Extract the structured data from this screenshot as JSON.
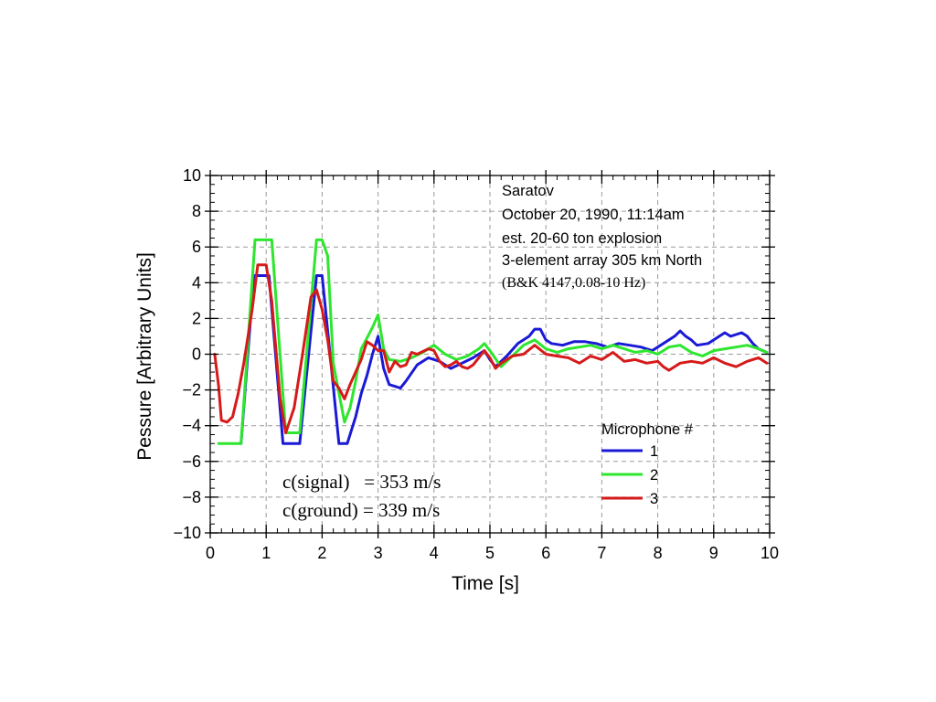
{
  "chart_data": {
    "type": "line",
    "xlabel": "Time [s]",
    "ylabel": "Pessure [Arbitrary Units]",
    "xlim": [
      0,
      10
    ],
    "ylim": [
      -10,
      10
    ],
    "xticks": [
      0,
      1,
      2,
      3,
      4,
      5,
      6,
      7,
      8,
      9,
      10
    ],
    "yticks": [
      -10,
      -8,
      -6,
      -4,
      -2,
      0,
      2,
      4,
      6,
      8,
      10
    ],
    "grid": true,
    "legend_title": "Microphone #",
    "legend_position": "lower-right",
    "annotations": {
      "info_lines": [
        "Saratov",
        "October 20, 1990, 11:14am",
        "est. 20-60 ton explosion",
        "3-element array 305 km North"
      ],
      "sensor_line": "(B&K 4147,0.08-10 Hz)",
      "speed_lines": [
        "c(signal)   = 353 m/s",
        "c(ground) = 339 m/s"
      ]
    },
    "series": [
      {
        "name": "1",
        "color": "#1a1ad6",
        "points": [
          [
            0.55,
            -5.0
          ],
          [
            0.78,
            4.4
          ],
          [
            1.05,
            4.4
          ],
          [
            1.3,
            -5.0
          ],
          [
            1.6,
            -5.0
          ],
          [
            1.9,
            4.4
          ],
          [
            2.0,
            4.4
          ],
          [
            2.2,
            -1.8
          ],
          [
            2.3,
            -5.0
          ],
          [
            2.45,
            -5.0
          ],
          [
            2.6,
            -3.5
          ],
          [
            2.7,
            -2.2
          ],
          [
            2.8,
            -1.2
          ],
          [
            2.9,
            0.0
          ],
          [
            3.0,
            1.0
          ],
          [
            3.1,
            -0.8
          ],
          [
            3.2,
            -1.7
          ],
          [
            3.4,
            -1.9
          ],
          [
            3.5,
            -1.5
          ],
          [
            3.7,
            -0.6
          ],
          [
            3.9,
            -0.2
          ],
          [
            4.1,
            -0.4
          ],
          [
            4.3,
            -0.8
          ],
          [
            4.5,
            -0.5
          ],
          [
            4.7,
            -0.2
          ],
          [
            4.9,
            0.2
          ],
          [
            5.0,
            -0.3
          ],
          [
            5.1,
            -0.7
          ],
          [
            5.3,
            -0.1
          ],
          [
            5.5,
            0.6
          ],
          [
            5.7,
            1.0
          ],
          [
            5.8,
            1.4
          ],
          [
            5.9,
            1.4
          ],
          [
            6.0,
            0.8
          ],
          [
            6.1,
            0.6
          ],
          [
            6.3,
            0.5
          ],
          [
            6.5,
            0.7
          ],
          [
            6.7,
            0.7
          ],
          [
            6.9,
            0.6
          ],
          [
            7.1,
            0.4
          ],
          [
            7.3,
            0.6
          ],
          [
            7.5,
            0.5
          ],
          [
            7.7,
            0.4
          ],
          [
            7.9,
            0.2
          ],
          [
            8.1,
            0.6
          ],
          [
            8.3,
            1.0
          ],
          [
            8.4,
            1.3
          ],
          [
            8.5,
            1.0
          ],
          [
            8.6,
            0.8
          ],
          [
            8.7,
            0.5
          ],
          [
            8.9,
            0.6
          ],
          [
            9.0,
            0.8
          ],
          [
            9.1,
            1.0
          ],
          [
            9.2,
            1.2
          ],
          [
            9.3,
            1.0
          ],
          [
            9.5,
            1.2
          ],
          [
            9.6,
            1.0
          ],
          [
            9.7,
            0.6
          ],
          [
            9.8,
            0.3
          ],
          [
            9.95,
            0.1
          ]
        ]
      },
      {
        "name": "2",
        "color": "#2ee62e",
        "points": [
          [
            0.15,
            -5.0
          ],
          [
            0.55,
            -5.0
          ],
          [
            0.8,
            6.4
          ],
          [
            1.1,
            6.4
          ],
          [
            1.35,
            -4.4
          ],
          [
            1.6,
            -4.4
          ],
          [
            1.9,
            6.4
          ],
          [
            2.0,
            6.4
          ],
          [
            2.1,
            5.5
          ],
          [
            2.2,
            -0.5
          ],
          [
            2.4,
            -3.8
          ],
          [
            2.5,
            -3.0
          ],
          [
            2.6,
            -1.5
          ],
          [
            2.7,
            0.3
          ],
          [
            2.8,
            0.9
          ],
          [
            2.9,
            1.5
          ],
          [
            3.0,
            2.2
          ],
          [
            3.1,
            0.3
          ],
          [
            3.2,
            -0.3
          ],
          [
            3.4,
            -0.4
          ],
          [
            3.6,
            -0.2
          ],
          [
            3.8,
            0.1
          ],
          [
            4.0,
            0.5
          ],
          [
            4.2,
            0.0
          ],
          [
            4.4,
            -0.3
          ],
          [
            4.6,
            -0.1
          ],
          [
            4.8,
            0.3
          ],
          [
            4.9,
            0.6
          ],
          [
            5.0,
            0.2
          ],
          [
            5.2,
            -0.7
          ],
          [
            5.4,
            -0.1
          ],
          [
            5.6,
            0.5
          ],
          [
            5.8,
            0.8
          ],
          [
            6.0,
            0.3
          ],
          [
            6.2,
            0.1
          ],
          [
            6.4,
            0.3
          ],
          [
            6.6,
            0.4
          ],
          [
            6.8,
            0.5
          ],
          [
            7.0,
            0.3
          ],
          [
            7.2,
            0.5
          ],
          [
            7.4,
            0.3
          ],
          [
            7.6,
            0.1
          ],
          [
            7.8,
            0.2
          ],
          [
            8.0,
            0.0
          ],
          [
            8.2,
            0.4
          ],
          [
            8.4,
            0.5
          ],
          [
            8.6,
            0.1
          ],
          [
            8.8,
            -0.1
          ],
          [
            9.0,
            0.2
          ],
          [
            9.2,
            0.3
          ],
          [
            9.4,
            0.4
          ],
          [
            9.6,
            0.5
          ],
          [
            9.8,
            0.3
          ],
          [
            9.95,
            0.1
          ]
        ]
      },
      {
        "name": "3",
        "color": "#d61a1a",
        "points": [
          [
            0.08,
            0.0
          ],
          [
            0.15,
            -1.8
          ],
          [
            0.2,
            -3.7
          ],
          [
            0.3,
            -3.8
          ],
          [
            0.4,
            -3.5
          ],
          [
            0.5,
            -2.2
          ],
          [
            0.6,
            -0.5
          ],
          [
            0.75,
            2.5
          ],
          [
            0.85,
            5.0
          ],
          [
            1.0,
            5.0
          ],
          [
            1.1,
            3.0
          ],
          [
            1.25,
            -2.5
          ],
          [
            1.35,
            -4.4
          ],
          [
            1.5,
            -3.0
          ],
          [
            1.65,
            0.0
          ],
          [
            1.8,
            3.2
          ],
          [
            1.9,
            3.6
          ],
          [
            2.0,
            2.5
          ],
          [
            2.1,
            0.8
          ],
          [
            2.2,
            -1.5
          ],
          [
            2.3,
            -1.9
          ],
          [
            2.4,
            -2.5
          ],
          [
            2.5,
            -1.7
          ],
          [
            2.6,
            -1.0
          ],
          [
            2.7,
            -0.3
          ],
          [
            2.8,
            0.7
          ],
          [
            2.9,
            0.5
          ],
          [
            3.0,
            0.2
          ],
          [
            3.1,
            0.2
          ],
          [
            3.2,
            -1.0
          ],
          [
            3.3,
            -0.4
          ],
          [
            3.4,
            -0.7
          ],
          [
            3.5,
            -0.6
          ],
          [
            3.6,
            0.1
          ],
          [
            3.7,
            0.0
          ],
          [
            3.9,
            0.3
          ],
          [
            4.0,
            0.2
          ],
          [
            4.1,
            -0.4
          ],
          [
            4.2,
            -0.7
          ],
          [
            4.3,
            -0.6
          ],
          [
            4.4,
            -0.4
          ],
          [
            4.5,
            -0.7
          ],
          [
            4.6,
            -0.8
          ],
          [
            4.7,
            -0.6
          ],
          [
            4.8,
            -0.2
          ],
          [
            4.9,
            0.2
          ],
          [
            5.0,
            -0.2
          ],
          [
            5.1,
            -0.8
          ],
          [
            5.2,
            -0.5
          ],
          [
            5.4,
            -0.1
          ],
          [
            5.6,
            0.0
          ],
          [
            5.8,
            0.5
          ],
          [
            6.0,
            0.0
          ],
          [
            6.2,
            -0.1
          ],
          [
            6.4,
            -0.2
          ],
          [
            6.6,
            -0.5
          ],
          [
            6.8,
            -0.1
          ],
          [
            7.0,
            -0.3
          ],
          [
            7.2,
            0.1
          ],
          [
            7.4,
            -0.4
          ],
          [
            7.6,
            -0.3
          ],
          [
            7.8,
            -0.5
          ],
          [
            8.0,
            -0.4
          ],
          [
            8.1,
            -0.7
          ],
          [
            8.2,
            -0.9
          ],
          [
            8.4,
            -0.5
          ],
          [
            8.6,
            -0.4
          ],
          [
            8.8,
            -0.5
          ],
          [
            9.0,
            -0.2
          ],
          [
            9.2,
            -0.5
          ],
          [
            9.4,
            -0.7
          ],
          [
            9.6,
            -0.4
          ],
          [
            9.8,
            -0.2
          ],
          [
            9.95,
            -0.5
          ]
        ]
      }
    ]
  }
}
